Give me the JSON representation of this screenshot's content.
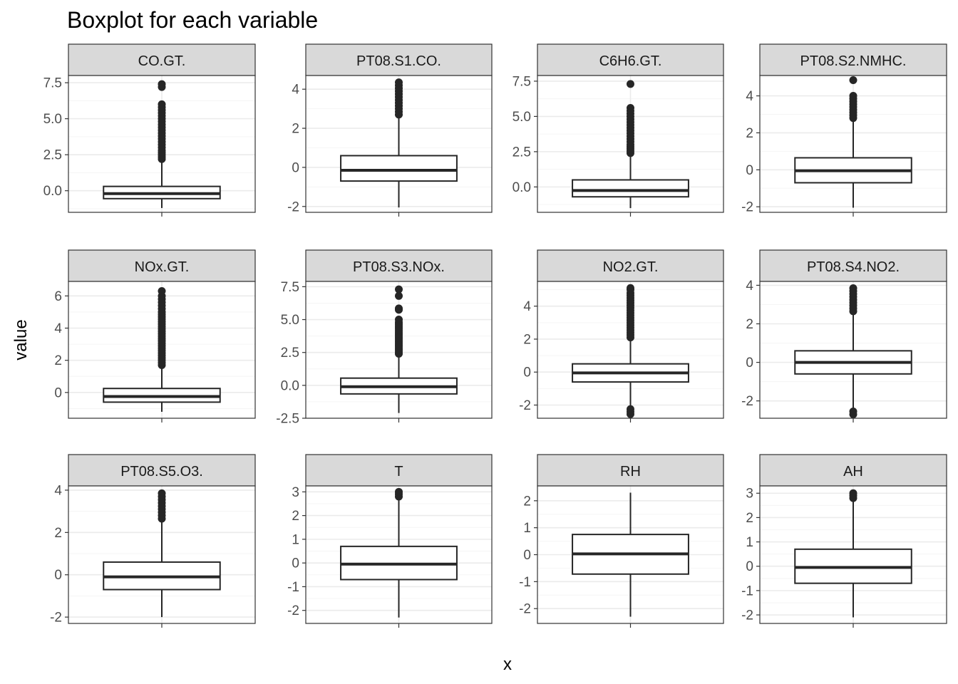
{
  "chart_data": {
    "type": "boxplot",
    "title": "Boxplot for each variable",
    "xlabel": "x",
    "ylabel": "value",
    "layout": "facet grid, 3 rows x 4 columns, free y scales",
    "grid": true,
    "colors": {
      "box_fill": "#ffffff",
      "box_line": "#262626",
      "outlier": "#262626",
      "strip_bg": "#d9d9d9",
      "panel_border": "#333333",
      "grid_major": "#ebebeb",
      "grid_minor": "#f5f5f5"
    },
    "panels": [
      {
        "name": "CO.GT.",
        "ylim": [
          -1.5,
          8.0
        ],
        "ticks": [
          0.0,
          2.5,
          5.0,
          7.5
        ],
        "tick_labels": [
          "0.0",
          "2.5",
          "5.0",
          "7.5"
        ],
        "box": {
          "lower_whisker": -1.2,
          "q1": -0.55,
          "median": -0.2,
          "q3": 0.3,
          "upper_whisker": 2.1
        },
        "outliers": [
          2.2,
          2.35,
          2.5,
          2.65,
          2.8,
          3.0,
          3.2,
          3.4,
          3.6,
          3.8,
          4.0,
          4.2,
          4.4,
          4.6,
          4.8,
          5.0,
          5.2,
          5.4,
          5.6,
          5.8,
          6.0,
          7.2,
          7.4
        ]
      },
      {
        "name": "PT08.S1.CO.",
        "ylim": [
          -2.3,
          4.7
        ],
        "ticks": [
          -2,
          0,
          2,
          4
        ],
        "tick_labels": [
          "-2",
          "0",
          "2",
          "4"
        ],
        "box": {
          "lower_whisker": -2.05,
          "q1": -0.7,
          "median": -0.15,
          "q3": 0.6,
          "upper_whisker": 2.6
        },
        "outliers": [
          2.7,
          2.85,
          3.0,
          3.15,
          3.3,
          3.45,
          3.6,
          3.75,
          3.9,
          4.05,
          4.2,
          4.35
        ]
      },
      {
        "name": "C6H6.GT.",
        "ylim": [
          -1.8,
          7.9
        ],
        "ticks": [
          0.0,
          2.5,
          5.0,
          7.5
        ],
        "tick_labels": [
          "0.0",
          "2.5",
          "5.0",
          "7.5"
        ],
        "box": {
          "lower_whisker": -1.5,
          "q1": -0.7,
          "median": -0.25,
          "q3": 0.5,
          "upper_whisker": 2.3
        },
        "outliers": [
          2.4,
          2.55,
          2.7,
          2.85,
          3.0,
          3.2,
          3.4,
          3.6,
          3.8,
          4.0,
          4.2,
          4.4,
          4.6,
          4.8,
          5.0,
          5.2,
          5.4,
          5.6,
          7.3
        ]
      },
      {
        "name": "PT08.S2.NMHC.",
        "ylim": [
          -2.3,
          5.1
        ],
        "ticks": [
          -2,
          0,
          2,
          4
        ],
        "tick_labels": [
          "-2",
          "0",
          "2",
          "4"
        ],
        "box": {
          "lower_whisker": -2.05,
          "q1": -0.7,
          "median": -0.05,
          "q3": 0.65,
          "upper_whisker": 2.7
        },
        "outliers": [
          2.8,
          2.95,
          3.1,
          3.25,
          3.4,
          3.55,
          3.7,
          3.85,
          4.0,
          4.85
        ]
      },
      {
        "name": "NOx.GT.",
        "ylim": [
          -1.6,
          6.9
        ],
        "ticks": [
          0,
          2,
          4,
          6
        ],
        "tick_labels": [
          "0",
          "2",
          "4",
          "6"
        ],
        "box": {
          "lower_whisker": -1.2,
          "q1": -0.6,
          "median": -0.25,
          "q3": 0.25,
          "upper_whisker": 1.6
        },
        "outliers": [
          1.7,
          1.85,
          2.0,
          2.15,
          2.3,
          2.45,
          2.6,
          2.75,
          2.9,
          3.05,
          3.2,
          3.35,
          3.5,
          3.65,
          3.8,
          3.95,
          4.1,
          4.25,
          4.4,
          4.55,
          4.7,
          4.85,
          5.0,
          5.2,
          5.4,
          5.6,
          5.8,
          6.0,
          6.3
        ]
      },
      {
        "name": "PT08.S3.NOx.",
        "ylim": [
          -2.5,
          7.9
        ],
        "ticks": [
          -2.5,
          0.0,
          2.5,
          5.0,
          7.5
        ],
        "tick_labels": [
          "-2.5",
          "0.0",
          "2.5",
          "5.0",
          "7.5"
        ],
        "box": {
          "lower_whisker": -2.1,
          "q1": -0.65,
          "median": -0.1,
          "q3": 0.55,
          "upper_whisker": 2.3
        },
        "outliers": [
          2.4,
          2.55,
          2.7,
          2.85,
          3.0,
          3.15,
          3.3,
          3.45,
          3.6,
          3.75,
          3.9,
          4.05,
          4.2,
          4.35,
          4.5,
          4.65,
          4.8,
          5.0,
          5.75,
          5.85,
          6.8,
          7.3
        ]
      },
      {
        "name": "NO2.GT.",
        "ylim": [
          -2.8,
          5.5
        ],
        "ticks": [
          -2,
          0,
          2,
          4
        ],
        "tick_labels": [
          "-2",
          "0",
          "2",
          "4"
        ],
        "box": {
          "lower_whisker": -2.1,
          "q1": -0.6,
          "median": -0.05,
          "q3": 0.5,
          "upper_whisker": 2.0
        },
        "outliers": [
          -2.25,
          -2.4,
          -2.55,
          2.1,
          2.25,
          2.4,
          2.55,
          2.7,
          2.85,
          3.0,
          3.15,
          3.3,
          3.45,
          3.6,
          3.75,
          3.9,
          4.05,
          4.2,
          4.35,
          4.5,
          4.65,
          4.8,
          5.0,
          5.1
        ]
      },
      {
        "name": "PT08.S4.NO2.",
        "ylim": [
          -2.9,
          4.2
        ],
        "ticks": [
          -2,
          0,
          2,
          4
        ],
        "tick_labels": [
          "-2",
          "0",
          "2",
          "4"
        ],
        "box": {
          "lower_whisker": -2.5,
          "q1": -0.6,
          "median": 0.0,
          "q3": 0.6,
          "upper_whisker": 2.55
        },
        "outliers": [
          -2.55,
          -2.7,
          2.65,
          2.8,
          2.95,
          3.1,
          3.25,
          3.4,
          3.55,
          3.7,
          3.85
        ]
      },
      {
        "name": "PT08.S5.O3.",
        "ylim": [
          -2.3,
          4.2
        ],
        "ticks": [
          -2,
          0,
          2,
          4
        ],
        "tick_labels": [
          "-2",
          "0",
          "2",
          "4"
        ],
        "box": {
          "lower_whisker": -2.0,
          "q1": -0.7,
          "median": -0.1,
          "q3": 0.6,
          "upper_whisker": 2.55
        },
        "outliers": [
          2.65,
          2.8,
          2.95,
          3.1,
          3.25,
          3.4,
          3.55,
          3.7,
          3.85
        ]
      },
      {
        "name": "T",
        "ylim": [
          -2.55,
          3.25
        ],
        "ticks": [
          -2,
          -1,
          0,
          1,
          2,
          3
        ],
        "tick_labels": [
          "-2",
          "-1",
          "0",
          "1",
          "2",
          "3"
        ],
        "box": {
          "lower_whisker": -2.3,
          "q1": -0.7,
          "median": -0.05,
          "q3": 0.7,
          "upper_whisker": 2.75
        },
        "outliers": [
          2.8,
          2.9,
          3.0
        ]
      },
      {
        "name": "RH",
        "ylim": [
          -2.55,
          2.55
        ],
        "ticks": [
          -2,
          -1,
          0,
          1,
          2
        ],
        "tick_labels": [
          "-2",
          "-1",
          "0",
          "1",
          "2"
        ],
        "box": {
          "lower_whisker": -2.3,
          "q1": -0.72,
          "median": 0.03,
          "q3": 0.75,
          "upper_whisker": 2.3
        },
        "outliers": []
      },
      {
        "name": "AH",
        "ylim": [
          -2.35,
          3.3
        ],
        "ticks": [
          -2,
          -1,
          0,
          1,
          2,
          3
        ],
        "tick_labels": [
          "-2",
          "-1",
          "0",
          "1",
          "2",
          "3"
        ],
        "box": {
          "lower_whisker": -2.1,
          "q1": -0.7,
          "median": -0.05,
          "q3": 0.7,
          "upper_whisker": 2.7
        },
        "outliers": [
          2.8,
          2.9,
          3.0
        ]
      }
    ]
  }
}
